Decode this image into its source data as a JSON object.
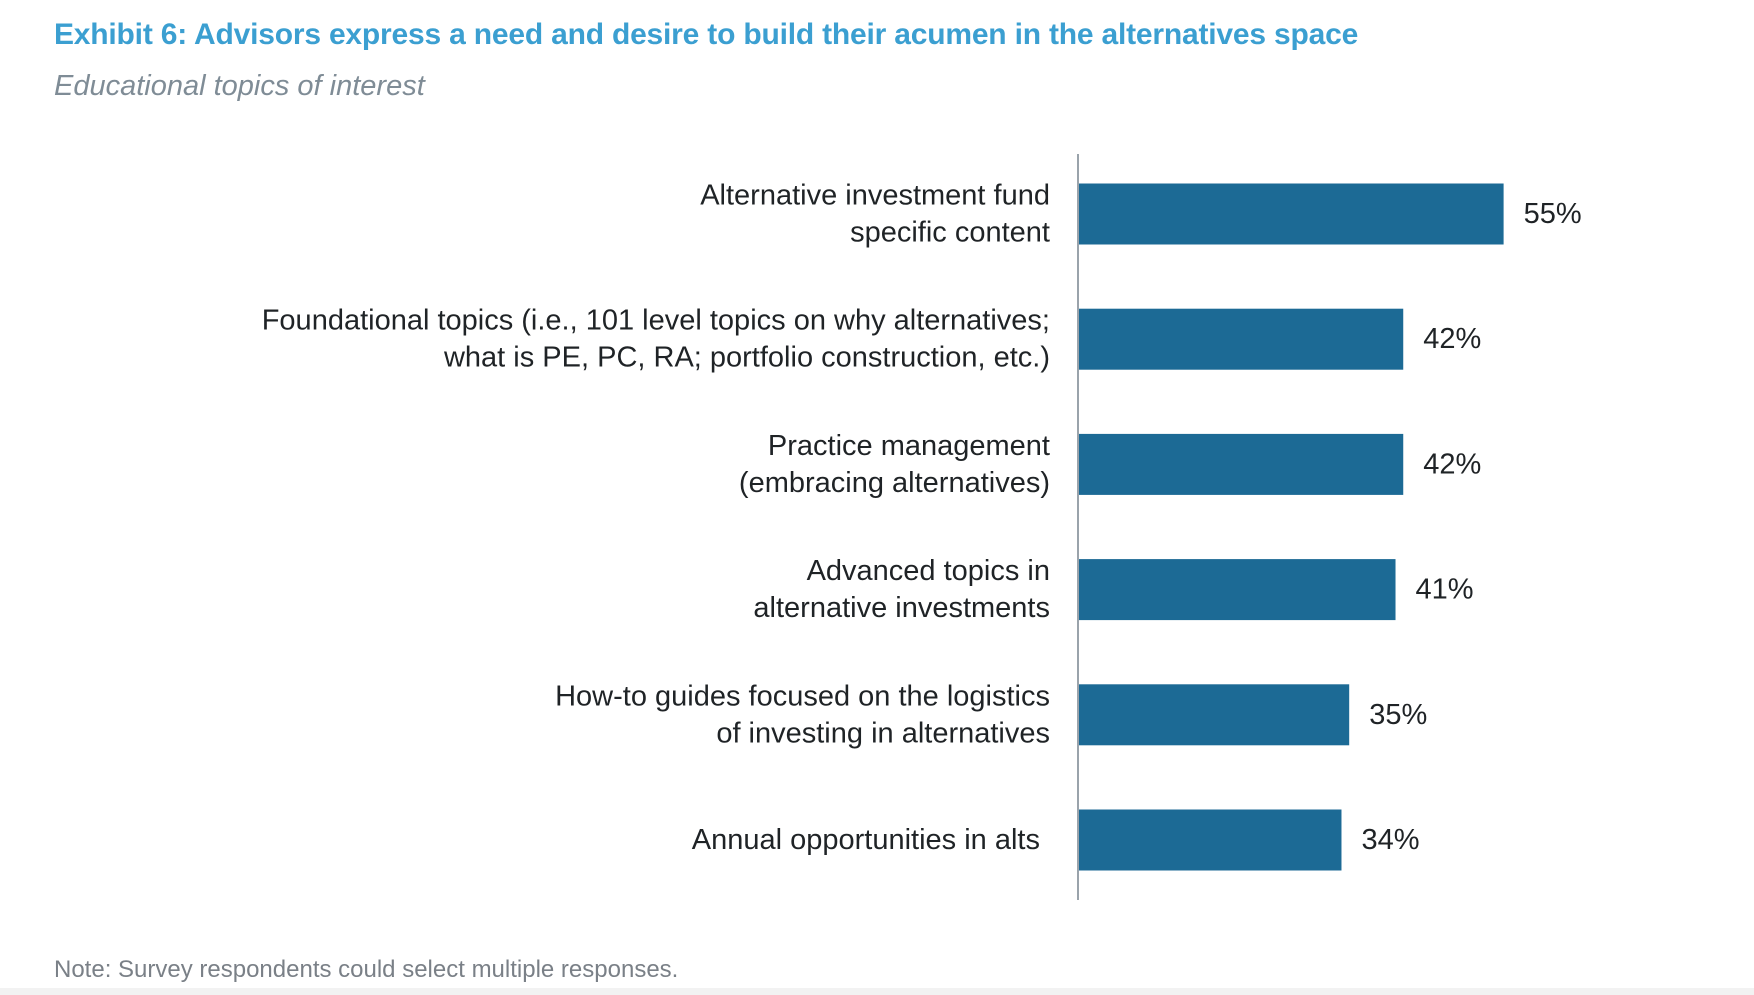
{
  "title": "Exhibit 6: Advisors express a need and desire to build their acumen in the alternatives space",
  "subtitle": "Educational topics of interest",
  "note": "Note: Survey respondents could select multiple responses.",
  "colors": {
    "title": "#3b9fd1",
    "bar": "#1c6a95",
    "axis": "#9aa3ab",
    "label": "#1f2326",
    "subtitle": "#7f8c96",
    "note": "#7a8087"
  },
  "chart_data": {
    "type": "bar",
    "orientation": "horizontal",
    "categories": [
      [
        "Alternative investment fund",
        "specific content"
      ],
      [
        "Foundational topics (i.e., 101 level topics on why alternatives;",
        "what is PE, PC, RA; portfolio construction, etc.)"
      ],
      [
        "Practice management",
        "(embracing alternatives)"
      ],
      [
        "Advanced topics in",
        "alternative investments"
      ],
      [
        "How-to guides focused on the logistics",
        "of investing in alternatives"
      ],
      [
        "Annual opportunities in alts"
      ]
    ],
    "values": [
      55,
      42,
      42,
      41,
      35,
      34
    ],
    "value_labels": [
      "55%",
      "42%",
      "42%",
      "41%",
      "35%",
      "34%"
    ],
    "unit": "%",
    "xlim": [
      0,
      100
    ],
    "grid": false,
    "legend": "none"
  }
}
